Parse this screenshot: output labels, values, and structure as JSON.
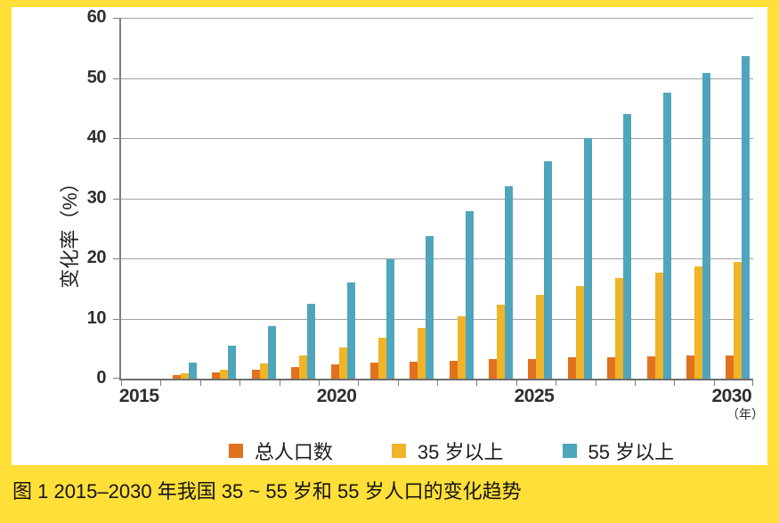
{
  "colors": {
    "page_background": "#FFDF38",
    "panel_background": "#FFFFFF",
    "gridline": "#A2A2A2",
    "axis": "#7D7D7D",
    "tick_text": "#2E2E2E",
    "series_total_population": "#E2711E",
    "series_35_plus": "#F0B428",
    "series_55_plus": "#4FA6BC"
  },
  "chart_data": {
    "type": "bar",
    "title": "",
    "ylabel": "变化率（%）",
    "x_unit_label": "（年）",
    "ylim": [
      0,
      60
    ],
    "ytick_interval": 10,
    "yticks": [
      0,
      10,
      20,
      30,
      40,
      50,
      60
    ],
    "grid": true,
    "legend_position": "bottom",
    "categories": [
      2015,
      2016,
      2017,
      2018,
      2019,
      2020,
      2021,
      2022,
      2023,
      2024,
      2025,
      2026,
      2027,
      2028,
      2029,
      2030
    ],
    "xticks": [
      {
        "label": "2015",
        "slot": 0
      },
      {
        "label": "2020",
        "slot": 5
      },
      {
        "label": "2025",
        "slot": 10
      },
      {
        "label": "2030",
        "slot": 15
      }
    ],
    "series": [
      {
        "key": "total-population",
        "name": "总人口数",
        "color": "#E2711E",
        "values": [
          0,
          0.6,
          1.1,
          1.5,
          1.9,
          2.4,
          2.7,
          2.8,
          3.0,
          3.2,
          3.3,
          3.5,
          3.6,
          3.7,
          3.8,
          3.8
        ]
      },
      {
        "key": "35-plus",
        "name": "35 岁以上",
        "color": "#F0B428",
        "values": [
          0,
          0.9,
          1.5,
          2.5,
          3.9,
          5.2,
          6.8,
          8.5,
          10.4,
          12.3,
          13.9,
          15.4,
          16.7,
          17.6,
          18.6,
          19.4
        ]
      },
      {
        "key": "55-plus",
        "name": "55 岁以上",
        "color": "#4FA6BC",
        "values": [
          0,
          2.6,
          5.5,
          8.8,
          12.4,
          16.0,
          19.8,
          23.7,
          27.8,
          32.0,
          36.2,
          40.0,
          44.0,
          47.6,
          50.8,
          53.7
        ]
      }
    ]
  },
  "caption": "图 1 2015–2030 年我国 35 ~ 55 岁和 55 岁人口的变化趋势"
}
